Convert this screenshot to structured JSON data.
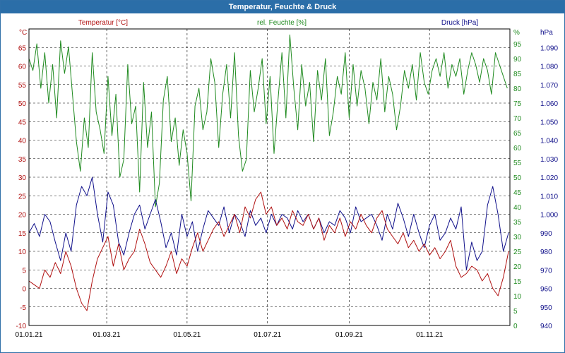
{
  "window": {
    "title": "Temperatur, Feuchte & Druck"
  },
  "chart_data": {
    "type": "line",
    "title": "Temperatur, Feuchte & Druck",
    "x": {
      "start": "01.01.21",
      "end": "31.12.21",
      "tick_labels": [
        "01.01.21",
        "01.03.21",
        "01.05.21",
        "01.07.21",
        "01.09.21",
        "01.11.21"
      ]
    },
    "axes": {
      "temperature": {
        "label": "Temperatur [°C]",
        "unit": "°C",
        "ylim": [
          -10,
          70
        ],
        "ticks": [
          "-10",
          "-5",
          "0",
          "5",
          "10",
          "15",
          "20",
          "25",
          "30",
          "35",
          "40",
          "45",
          "50",
          "55",
          "60",
          "65"
        ],
        "color": "#b01010",
        "side": "left"
      },
      "humidity": {
        "label": "rel. Feuchte [%]",
        "unit": "%",
        "ylim": [
          0,
          100
        ],
        "ticks": [
          "0",
          "5",
          "10",
          "15",
          "20",
          "25",
          "30",
          "35",
          "40",
          "45",
          "50",
          "55",
          "60",
          "65",
          "70",
          "75",
          "80",
          "85",
          "90",
          "95"
        ],
        "color": "#1f8a1f",
        "side": "right-inner"
      },
      "pressure": {
        "label": "Druck [hPa]",
        "unit": "hPa",
        "ylim": [
          940,
          1100
        ],
        "ticks": [
          "940",
          "950",
          "960",
          "970",
          "980",
          "990",
          "1.000",
          "1.010",
          "1.020",
          "1.030",
          "1.040",
          "1.050",
          "1.060",
          "1.070",
          "1.080",
          "1.090"
        ],
        "color": "#10108a",
        "side": "right-outer"
      }
    },
    "grid": true,
    "series": [
      {
        "name": "Temperatur [°C]",
        "color": "#b01010",
        "axis": "temperature",
        "x_days": [
          0,
          4,
          8,
          12,
          16,
          20,
          24,
          28,
          32,
          36,
          40,
          44,
          48,
          52,
          56,
          60,
          64,
          68,
          72,
          76,
          80,
          84,
          88,
          92,
          96,
          100,
          104,
          108,
          112,
          116,
          120,
          124,
          128,
          132,
          136,
          140,
          144,
          148,
          152,
          156,
          160,
          164,
          168,
          172,
          176,
          180,
          184,
          188,
          192,
          196,
          200,
          204,
          208,
          212,
          216,
          220,
          224,
          228,
          232,
          236,
          240,
          244,
          248,
          252,
          256,
          260,
          264,
          268,
          272,
          276,
          280,
          284,
          288,
          292,
          296,
          300,
          304,
          308,
          312,
          316,
          320,
          324,
          328,
          332,
          336,
          340,
          344,
          348,
          352,
          356,
          360,
          364
        ],
        "values": [
          2,
          1,
          0,
          5,
          3,
          7,
          4,
          10,
          6,
          0,
          -4,
          -6,
          2,
          8,
          11,
          14,
          6,
          12,
          5,
          8,
          10,
          16,
          12,
          7,
          5,
          3,
          6,
          10,
          4,
          8,
          6,
          11,
          15,
          10,
          13,
          16,
          18,
          14,
          17,
          20,
          15,
          22,
          19,
          24,
          26,
          20,
          22,
          17,
          19,
          16,
          21,
          18,
          17,
          20,
          16,
          19,
          13,
          17,
          15,
          19,
          14,
          18,
          16,
          20,
          17,
          15,
          19,
          21,
          16,
          14,
          12,
          15,
          11,
          13,
          10,
          12,
          9,
          11,
          8,
          10,
          13,
          6,
          3,
          4,
          6,
          5,
          2,
          4,
          0,
          -2,
          3,
          10
        ]
      },
      {
        "name": "rel. Feuchte [%]",
        "color": "#1f8a1f",
        "axis": "humidity",
        "x_days": [
          0,
          3,
          6,
          9,
          12,
          15,
          18,
          21,
          24,
          27,
          30,
          33,
          36,
          39,
          42,
          45,
          48,
          51,
          54,
          57,
          60,
          63,
          66,
          69,
          72,
          75,
          78,
          81,
          84,
          87,
          90,
          93,
          96,
          99,
          102,
          105,
          108,
          111,
          114,
          117,
          120,
          123,
          126,
          129,
          132,
          135,
          138,
          141,
          144,
          147,
          150,
          153,
          156,
          159,
          162,
          165,
          168,
          171,
          174,
          177,
          180,
          183,
          186,
          189,
          192,
          195,
          198,
          201,
          204,
          207,
          210,
          213,
          216,
          219,
          222,
          225,
          228,
          231,
          234,
          237,
          240,
          243,
          246,
          249,
          252,
          255,
          258,
          261,
          264,
          267,
          270,
          273,
          276,
          279,
          282,
          285,
          288,
          291,
          294,
          297,
          300,
          303,
          306,
          309,
          312,
          315,
          318,
          321,
          324,
          327,
          330,
          333,
          336,
          339,
          342,
          345,
          348,
          351,
          354,
          357,
          360,
          363
        ],
        "values": [
          90,
          86,
          95,
          80,
          92,
          75,
          88,
          70,
          96,
          85,
          94,
          78,
          62,
          52,
          70,
          60,
          92,
          72,
          66,
          58,
          84,
          64,
          78,
          50,
          56,
          88,
          68,
          74,
          45,
          82,
          60,
          72,
          40,
          48,
          76,
          84,
          62,
          70,
          54,
          66,
          58,
          42,
          74,
          80,
          66,
          72,
          90,
          82,
          60,
          78,
          88,
          70,
          92,
          64,
          52,
          56,
          86,
          72,
          80,
          90,
          68,
          84,
          58,
          76,
          92,
          70,
          98,
          80,
          66,
          88,
          74,
          82,
          62,
          86,
          76,
          90,
          64,
          72,
          84,
          78,
          92,
          70,
          88,
          74,
          86,
          80,
          68,
          82,
          76,
          90,
          72,
          84,
          78,
          66,
          74,
          86,
          80,
          88,
          76,
          92,
          82,
          78,
          86,
          90,
          84,
          92,
          80,
          88,
          84,
          90,
          78,
          86,
          92,
          88,
          82,
          90,
          86,
          78,
          92,
          88,
          84,
          80
        ]
      },
      {
        "name": "Druck [hPa]",
        "color": "#10108a",
        "axis": "pressure",
        "x_days": [
          0,
          4,
          8,
          12,
          16,
          20,
          24,
          28,
          32,
          36,
          40,
          44,
          48,
          52,
          56,
          60,
          64,
          68,
          72,
          76,
          80,
          84,
          88,
          92,
          96,
          100,
          104,
          108,
          112,
          116,
          120,
          124,
          128,
          132,
          136,
          140,
          144,
          148,
          152,
          156,
          160,
          164,
          168,
          172,
          176,
          180,
          184,
          188,
          192,
          196,
          200,
          204,
          208,
          212,
          216,
          220,
          224,
          228,
          232,
          236,
          240,
          244,
          248,
          252,
          256,
          260,
          264,
          268,
          272,
          276,
          280,
          284,
          288,
          292,
          296,
          300,
          304,
          308,
          312,
          316,
          320,
          324,
          328,
          332,
          336,
          340,
          344,
          348,
          352,
          356,
          360,
          364
        ],
        "values": [
          990,
          995,
          988,
          1000,
          996,
          985,
          975,
          990,
          980,
          1005,
          1015,
          1010,
          1020,
          1000,
          985,
          1012,
          1005,
          985,
          978,
          990,
          1000,
          1005,
          992,
          1000,
          1008,
          996,
          982,
          990,
          978,
          1000,
          988,
          996,
          980,
          992,
          1002,
          998,
          994,
          1004,
          990,
          1000,
          996,
          988,
          1002,
          994,
          998,
          990,
          1000,
          994,
          1000,
          998,
          992,
          1002,
          996,
          1000,
          992,
          998,
          990,
          996,
          994,
          1002,
          998,
          990,
          1004,
          996,
          998,
          1000,
          994,
          986,
          1000,
          992,
          1006,
          998,
          988,
          1000,
          990,
          982,
          994,
          1000,
          986,
          990,
          998,
          992,
          1004,
          970,
          985,
          975,
          980,
          1005,
          1015,
          1000,
          980,
          990
        ]
      }
    ]
  }
}
